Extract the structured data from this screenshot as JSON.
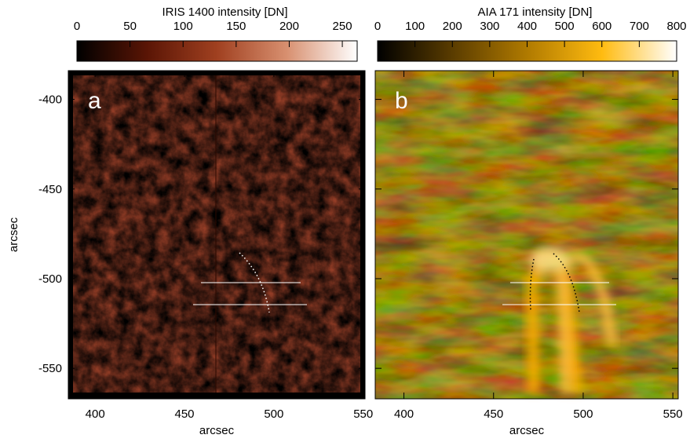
{
  "chart_data": [
    {
      "type": "image",
      "panel_label": "a",
      "colorbar_label": "IRIS 1400 intensity [DN]",
      "colorbar_lim": [
        0,
        264
      ],
      "colorbar_ticks": [
        0,
        50,
        100,
        150,
        200,
        250
      ],
      "colormap": [
        "#000000",
        "#5a1505",
        "#a04020",
        "#d89070",
        "#ffffff"
      ],
      "xlim": [
        385,
        551
      ],
      "xticks": [
        400,
        450,
        500,
        550
      ],
      "xlabel": "arcsec",
      "ylim": [
        -567,
        -384
      ],
      "yticks": [
        -400,
        -450,
        -500,
        -550
      ],
      "ylabel": "arcsec"
    },
    {
      "type": "image",
      "panel_label": "b",
      "colorbar_label": "AIA 171 intensity [DN]",
      "colorbar_lim": [
        0,
        800
      ],
      "colorbar_ticks": [
        0,
        100,
        200,
        300,
        400,
        500,
        600,
        700,
        800
      ],
      "colormap": [
        "#000000",
        "#5a3c00",
        "#b07a00",
        "#ffbb10",
        "#ffffff"
      ],
      "xlim": [
        384,
        553
      ],
      "xticks": [
        400,
        450,
        500,
        550
      ],
      "xlabel": "arcsec",
      "ylim": [
        -567,
        -384
      ]
    }
  ]
}
